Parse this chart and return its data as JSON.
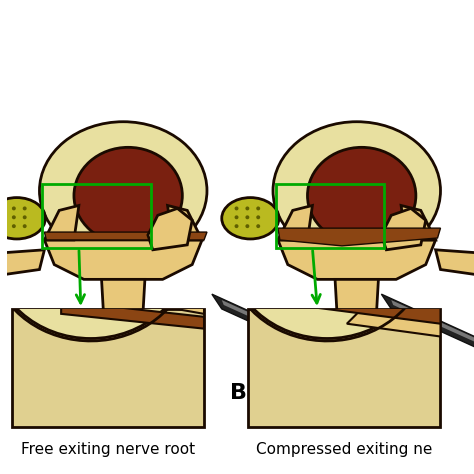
{
  "title_label": "B",
  "label_left": "Free exiting nerve root",
  "label_right": "Compressed exiting ne",
  "bg_color": "#ffffff",
  "title_fontsize": 16,
  "label_fontsize": 11,
  "colors": {
    "bone_light": "#e8c87a",
    "bone_dark": "#c8a84a",
    "disc_outer": "#e8d890",
    "disc_inner": "#7a2010",
    "nerve_yellow": "#c8c020",
    "nerve_dot": "#808000",
    "ligament": "#8b4513",
    "outline": "#1a0a00",
    "green_box": "#00aa00",
    "green_arrow": "#00aa00",
    "instrument_dark": "#1a1a1a",
    "instrument_light": "#888888",
    "skin_tan": "#d4a96a",
    "brown_dark": "#5a2000",
    "brown_mid": "#8b4513"
  }
}
